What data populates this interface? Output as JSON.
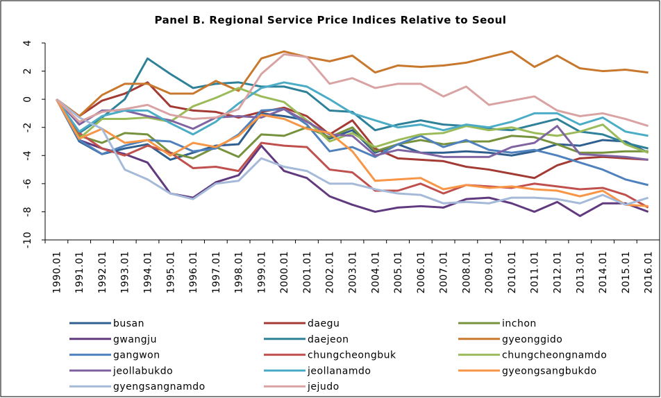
{
  "chart_data": {
    "type": "line",
    "title": "Panel B. Regional Service Price Indices Relative to Seoul",
    "categories": [
      "1990.01",
      "1991.01",
      "1992.01",
      "1993.01",
      "1994.01",
      "1995.01",
      "1996.01",
      "1997.01",
      "1998.01",
      "1999.01",
      "2000.01",
      "2001.01",
      "2002.01",
      "2003.01",
      "2004.01",
      "2005.01",
      "2006.01",
      "2007.01",
      "2008.01",
      "2009.01",
      "2010.01",
      "2011.01",
      "2012.01",
      "2013.01",
      "2014.01",
      "2015.01",
      "2016.01"
    ],
    "ylim": [
      -10,
      4
    ],
    "yticks": [
      -10,
      -8,
      -6,
      -4,
      -2,
      0,
      2,
      4
    ],
    "series": [
      {
        "name": "busan",
        "color": "#2f5f8f",
        "values": [
          0,
          -3,
          -3.9,
          -3.5,
          -3.2,
          -4.3,
          -3.8,
          -3.3,
          -3.2,
          -1,
          -1.2,
          -1.5,
          -2.8,
          -2.2,
          -3.8,
          -3.2,
          -3.8,
          -3.8,
          -3.7,
          -3.8,
          -4,
          -3.7,
          -3.2,
          -3.3,
          -2.9,
          -3,
          -3.8
        ]
      },
      {
        "name": "daegu",
        "color": "#a33a33",
        "values": [
          0,
          -1.2,
          -0.1,
          0.4,
          1.2,
          -0.5,
          -0.8,
          -0.9,
          -1.3,
          -0.9,
          -0.6,
          -1.2,
          -2.5,
          -1.5,
          -3.5,
          -4.2,
          -4.3,
          -4.4,
          -4.8,
          -5,
          -5.3,
          -5.6,
          -4.7,
          -4.2,
          -4.1,
          -4.2,
          -4.3
        ]
      },
      {
        "name": "inchon",
        "color": "#76923c",
        "values": [
          0,
          -2.6,
          -3.1,
          -2.4,
          -2.5,
          -3.8,
          -4.2,
          -3.4,
          -4.1,
          -2.5,
          -2.6,
          -2,
          -2.7,
          -2,
          -3.7,
          -3.2,
          -2.9,
          -3.2,
          -3,
          -3,
          -2.6,
          -2.7,
          -3.2,
          -3.8,
          -3.8,
          -3.7,
          -3.7
        ]
      },
      {
        "name": "gwangju",
        "color": "#60397e",
        "values": [
          0,
          -2.9,
          -3.5,
          -3.9,
          -4.5,
          -6.7,
          -7,
          -5.9,
          -5.4,
          -3.3,
          -5.1,
          -5.6,
          -6.9,
          -7.5,
          -8,
          -7.7,
          -7.6,
          -7.7,
          -7.1,
          -7,
          -7.4,
          -8,
          -7.3,
          -8.3,
          -7.4,
          -7.4,
          -8
        ]
      },
      {
        "name": "daejeon",
        "color": "#2e8199",
        "values": [
          0,
          -2.4,
          -1.3,
          0,
          2.9,
          1.8,
          0.8,
          1.1,
          1.2,
          0.9,
          0.9,
          0.5,
          -0.8,
          -0.9,
          -2.2,
          -1.8,
          -1.5,
          -1.8,
          -1.9,
          -2.1,
          -2.2,
          -1.8,
          -1.4,
          -2.3,
          -2.5,
          -3.1,
          -3.5
        ]
      },
      {
        "name": "gyeonggido",
        "color": "#c8782d",
        "values": [
          0,
          -1.2,
          0.3,
          1.1,
          1.1,
          0.4,
          0.4,
          1.3,
          0.6,
          2.9,
          3.4,
          3,
          2.7,
          3.1,
          1.9,
          2.4,
          2.3,
          2.4,
          2.6,
          3,
          3.4,
          2.3,
          3.1,
          2.2,
          2,
          2.1,
          1.9
        ]
      },
      {
        "name": "gangwon",
        "color": "#4f81bd",
        "values": [
          0,
          -2.9,
          -3.9,
          -3.3,
          -2.9,
          -3,
          -3.7,
          -3.5,
          -2.5,
          -0.8,
          -0.7,
          -1.8,
          -3.7,
          -3.4,
          -4.1,
          -3.2,
          -2.6,
          -3.4,
          -2.9,
          -3.6,
          -3.8,
          -3.6,
          -4,
          -4.5,
          -5,
          -5.7,
          -6.1
        ]
      },
      {
        "name": "chungcheongbuk",
        "color": "#c0504d",
        "values": [
          0,
          -2.4,
          -3.5,
          -4,
          -3.3,
          -3.8,
          -4.9,
          -4.8,
          -5.1,
          -3.1,
          -3.3,
          -3.4,
          -5,
          -5.2,
          -6.5,
          -6.5,
          -6,
          -6.7,
          -6.1,
          -6.2,
          -6.3,
          -6,
          -6.2,
          -6.4,
          -6.3,
          -6.8,
          -7.7
        ]
      },
      {
        "name": "chungcheongnamdo",
        "color": "#9bbb59",
        "values": [
          0,
          -2.8,
          -1.4,
          -1.4,
          -1.3,
          -1.6,
          -0.5,
          0.1,
          0.8,
          0.2,
          -0.2,
          -1.5,
          -3,
          -2.4,
          -3.4,
          -2.9,
          -2.5,
          -2.4,
          -1.9,
          -2.2,
          -2,
          -2.4,
          -2.6,
          -2.3,
          -1.8,
          -3.2,
          -3.8
        ]
      },
      {
        "name": "jeollabukdo",
        "color": "#8064a2",
        "values": [
          0,
          -1.8,
          -0.8,
          -0.8,
          -1.2,
          -1.5,
          -2.1,
          -1.3,
          -1.2,
          -1.3,
          -0.7,
          -1.6,
          -2.5,
          -2.6,
          -4,
          -3.6,
          -3.8,
          -4.1,
          -4.1,
          -4.1,
          -3.4,
          -3.1,
          -1.9,
          -3.9,
          -4,
          -4.1,
          -4.3
        ]
      },
      {
        "name": "jeollanamdo",
        "color": "#4bacc6",
        "values": [
          0,
          -2.3,
          -1.2,
          -0.8,
          -0.8,
          -1.7,
          -2.5,
          -1.6,
          -0.3,
          0.8,
          1.2,
          0.9,
          0,
          -1,
          -1.5,
          -2,
          -1.8,
          -2.2,
          -1.8,
          -2,
          -1.6,
          -1,
          -1,
          -1.8,
          -1.3,
          -2.3,
          -2.6
        ]
      },
      {
        "name": "gyeongsangbukdo",
        "color": "#f79646",
        "values": [
          0,
          -2.8,
          -2.1,
          -3.1,
          -2.9,
          -4,
          -3.1,
          -3.4,
          -2.6,
          -1.1,
          -1.4,
          -2.1,
          -2.4,
          -3.7,
          -5.8,
          -5.7,
          -5.6,
          -6.4,
          -6.1,
          -6.3,
          -6.2,
          -6.4,
          -6.5,
          -6.9,
          -6.5,
          -7.5,
          -7.6
        ]
      },
      {
        "name": "gyengsangnamdo",
        "color": "#a5b9d9",
        "values": [
          0,
          -1.3,
          -2.1,
          -5,
          -5.7,
          -6.7,
          -7.1,
          -6,
          -5.8,
          -4.2,
          -4.8,
          -5.1,
          -6,
          -6,
          -6.4,
          -6.7,
          -6.8,
          -7.4,
          -7.3,
          -7.4,
          -7,
          -7,
          -7.1,
          -7.4,
          -6.8,
          -7.5,
          -7
        ]
      },
      {
        "name": "jejudo",
        "color": "#d9a3a3",
        "values": [
          0,
          -1.6,
          -0.9,
          -0.7,
          -0.4,
          -1.1,
          -1.4,
          -1.3,
          -0.7,
          1.8,
          3.2,
          3,
          1.1,
          1.5,
          0.8,
          1.1,
          1.1,
          0.2,
          0.9,
          -0.4,
          -0.1,
          0.2,
          -0.8,
          -1.2,
          -1,
          -1.4,
          -1.9
        ]
      }
    ]
  }
}
